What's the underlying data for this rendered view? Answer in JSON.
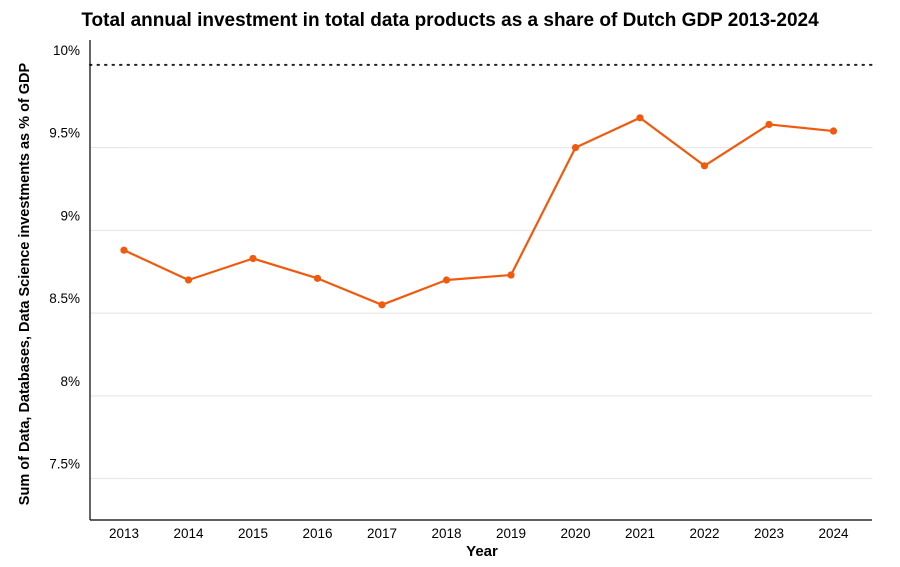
{
  "chart_data": {
    "type": "line",
    "title": "Total annual investment in total data products as a share of Dutch GDP 2013-2024",
    "xlabel": "Year",
    "ylabel": "Sum of Data, Databases, Data Science investments as % of GDP",
    "x": [
      "2013",
      "2014",
      "2015",
      "2016",
      "2017",
      "2018",
      "2019",
      "2020",
      "2021",
      "2022",
      "2023",
      "2024"
    ],
    "series": [
      {
        "values": [
          8.88,
          8.7,
          8.83,
          8.71,
          8.55,
          8.7,
          8.73,
          9.5,
          9.68,
          9.39,
          9.64,
          9.6
        ]
      }
    ],
    "y_ticks": [
      {
        "value": 7.5,
        "label": "7.5%"
      },
      {
        "value": 8.0,
        "label": "8%"
      },
      {
        "value": 8.5,
        "label": "8.5%"
      },
      {
        "value": 9.0,
        "label": "9%"
      },
      {
        "value": 9.5,
        "label": "9.5%"
      },
      {
        "value": 10.0,
        "label": "10%"
      }
    ],
    "ylim": [
      7.25,
      10.15
    ],
    "reference_line": {
      "value": 10.0,
      "style": "dotted"
    },
    "grid": "horizontal",
    "line_color": "#f05a0e",
    "grid_color": "#e4e4e4",
    "axis_color": "#000000"
  }
}
